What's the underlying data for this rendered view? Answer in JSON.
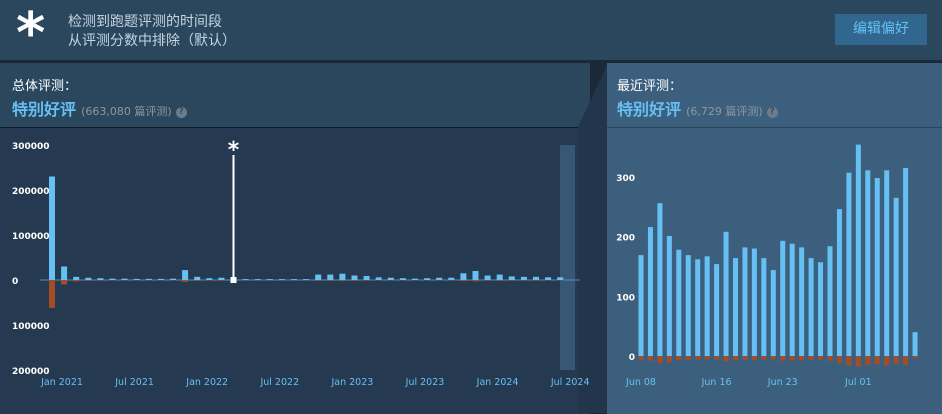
{
  "banner": {
    "icon": "*",
    "line1": "检测到跑题评测的时间段",
    "line2": "从评测分数中排除（默认）",
    "button": "编辑偏好"
  },
  "overall": {
    "heading": "总体评测：",
    "rating": "特别好评",
    "count": "(663,080 篇评测)",
    "help": "?"
  },
  "recent": {
    "heading": "最近评测：",
    "rating": "特别好评",
    "count": "(6,729 篇评测)",
    "help": "?"
  },
  "chart_data": [
    {
      "type": "bar",
      "stacked_diverging": true,
      "categories": [
        "Jan 2021",
        null,
        null,
        null,
        null,
        null,
        "Jul 2021",
        null,
        null,
        null,
        null,
        null,
        "Jan 2022",
        null,
        null,
        null,
        null,
        null,
        "Jul 2022",
        null,
        null,
        null,
        null,
        null,
        "Jan 2023",
        null,
        null,
        null,
        null,
        null,
        "Jul 2023",
        null,
        null,
        null,
        null,
        null,
        "Jan 2024",
        null,
        null,
        null,
        null,
        null,
        "Jul 2024"
      ],
      "series": [
        {
          "color": "#66c0f4",
          "values": [
            230000,
            30000,
            7000,
            5000,
            4000,
            3000,
            3000,
            2500,
            2500,
            2500,
            3000,
            22000,
            7000,
            4000,
            5000,
            4000,
            2000,
            2000,
            2000,
            2000,
            2000,
            2000,
            12000,
            12000,
            14000,
            10000,
            9000,
            6000,
            5000,
            4000,
            3000,
            4000,
            5000,
            5000,
            15000,
            20000,
            10000,
            12000,
            8000,
            7000,
            7000,
            6000,
            6000
          ]
        },
        {
          "color": "#a34c25",
          "values": [
            -62000,
            -10000,
            -3000,
            -2000,
            -1500,
            -1000,
            -1000,
            -1000,
            -1000,
            -1000,
            -1000,
            -4000,
            -2000,
            -1000,
            -1500,
            -1000,
            -500,
            -500,
            -500,
            -500,
            -500,
            -500,
            -2000,
            -2000,
            -2500,
            -2000,
            -1500,
            -1000,
            -1000,
            -1000,
            -1000,
            -1000,
            -1000,
            -1000,
            -2500,
            -3000,
            -1500,
            -2000,
            -1500,
            -1500,
            -1500,
            -1000,
            -1000
          ]
        }
      ],
      "ylim": [
        -200000,
        300000
      ],
      "yticks": [
        300000,
        200000,
        100000,
        0,
        {
          "value": -100000,
          "label": "100000"
        },
        {
          "value": -200000,
          "label": "200000"
        }
      ],
      "excluded_period": {
        "index": 15,
        "label": "*"
      }
    },
    {
      "type": "bar",
      "stacked_diverging": true,
      "categories": [
        "Jun 08",
        null,
        null,
        null,
        null,
        null,
        null,
        null,
        "Jun 16",
        null,
        null,
        null,
        null,
        null,
        null,
        "Jun 23",
        null,
        null,
        null,
        null,
        null,
        null,
        null,
        "Jul 01",
        null,
        null,
        null,
        null,
        null,
        null
      ],
      "series": [
        {
          "color": "#66c0f4",
          "values": [
            169,
            216,
            256,
            201,
            178,
            169,
            162,
            167,
            154,
            208,
            164,
            182,
            180,
            164,
            144,
            193,
            188,
            182,
            164,
            157,
            184,
            246,
            307,
            354,
            311,
            298,
            311,
            265,
            315,
            40
          ]
        },
        {
          "color": "#a34c25",
          "values": [
            -6,
            -8,
            -12,
            -10,
            -7,
            -6,
            -6,
            -5,
            -6,
            -9,
            -7,
            -6,
            -7,
            -6,
            -5,
            -8,
            -7,
            -7,
            -6,
            -6,
            -8,
            -12,
            -16,
            -18,
            -15,
            -14,
            -16,
            -13,
            -15,
            -3
          ]
        }
      ],
      "ylim": [
        -25,
        340
      ],
      "yticks": [
        300,
        200,
        100,
        0
      ]
    }
  ]
}
